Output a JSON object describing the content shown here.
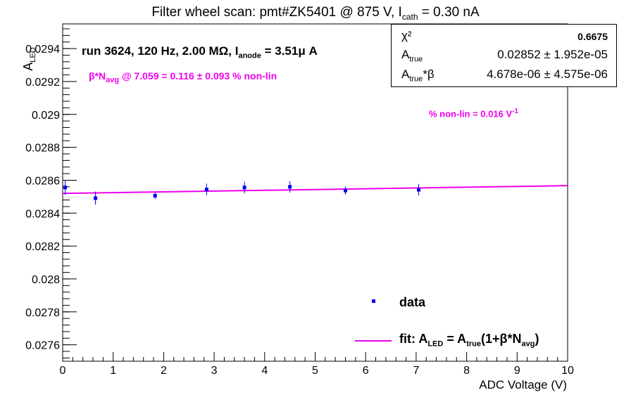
{
  "title": {
    "prefix": "Filter wheel scan: pmt#ZK5401 @   875 V, I",
    "sub": "cath",
    "suffix": " = 0.30 nA"
  },
  "stats": {
    "chi2_label": "χ²",
    "chi2_value": "0.6675",
    "atrue_label": "A",
    "atrue_sub": "true",
    "atrue_value": "0.02852 ± 1.952e-05",
    "atrue_beta_label": "A",
    "atrue_beta_sub": "true",
    "atrue_beta_suffix": "*β",
    "atrue_beta_value": "4.678e-06 ± 4.575e-06"
  },
  "annotations": {
    "run_prefix": "run 3624, 120 Hz, 2.00 MΩ, I",
    "run_sub": "anode",
    "run_suffix": " = 3.51μ A",
    "beta_prefix": "β*N",
    "beta_sub": "avg",
    "beta_suffix": " @ 7.059 = 0.116 ± 0.093 % non-lin",
    "nonlin_text": "% non-lin = 0.016 V",
    "nonlin_sup": "-1"
  },
  "legend": {
    "data_label": "data",
    "fit_prefix": "fit: A",
    "fit_sub1": "LED",
    "fit_mid": " = A",
    "fit_sub2": "true",
    "fit_mid2": "(1+β*N",
    "fit_sub3": "avg",
    "fit_suffix": ")"
  },
  "colors": {
    "data": "#0000ee",
    "fit": "#ee00ee",
    "annotation": "#ee00ee"
  },
  "chart_data": {
    "type": "scatter",
    "title": "Filter wheel scan: pmt#ZK5401 @   875 V, I_cath = 0.30 nA",
    "xlabel": "ADC Voltage (V)",
    "ylabel": "A_LED",
    "xlim": [
      0,
      10
    ],
    "ylim": [
      0.0275,
      0.02955
    ],
    "x_ticks": [
      0,
      1,
      2,
      3,
      4,
      5,
      6,
      7,
      8,
      9,
      10
    ],
    "y_ticks": [
      0.0276,
      0.0278,
      0.028,
      0.0282,
      0.0284,
      0.0286,
      0.0288,
      0.029,
      0.0292,
      0.0294
    ],
    "y_tick_labels": [
      "0.0276",
      "0.0278",
      "0.028",
      "0.0282",
      "0.0284",
      "0.0286",
      "0.0288",
      "0.029",
      "0.0292",
      "0.0294"
    ],
    "grid": false,
    "series": [
      {
        "name": "data",
        "points": [
          {
            "x": 0.05,
            "y": 0.028556,
            "err": 4.5e-05
          },
          {
            "x": 0.65,
            "y": 0.028491,
            "err": 4e-05
          },
          {
            "x": 1.83,
            "y": 0.028506,
            "err": 2e-05
          },
          {
            "x": 2.85,
            "y": 0.028544,
            "err": 3.5e-05
          },
          {
            "x": 3.6,
            "y": 0.028556,
            "err": 3.5e-05
          },
          {
            "x": 4.5,
            "y": 0.02856,
            "err": 3.5e-05
          },
          {
            "x": 5.6,
            "y": 0.028537,
            "err": 2.5e-05
          },
          {
            "x": 7.05,
            "y": 0.028542,
            "err": 3.5e-05
          }
        ]
      },
      {
        "name": "fit: A_LED = A_true(1+β*N_avg)",
        "type": "line",
        "x": [
          0,
          10
        ],
        "y": [
          0.02852,
          0.028567
        ]
      }
    ],
    "legend_position": "bottom-right"
  }
}
